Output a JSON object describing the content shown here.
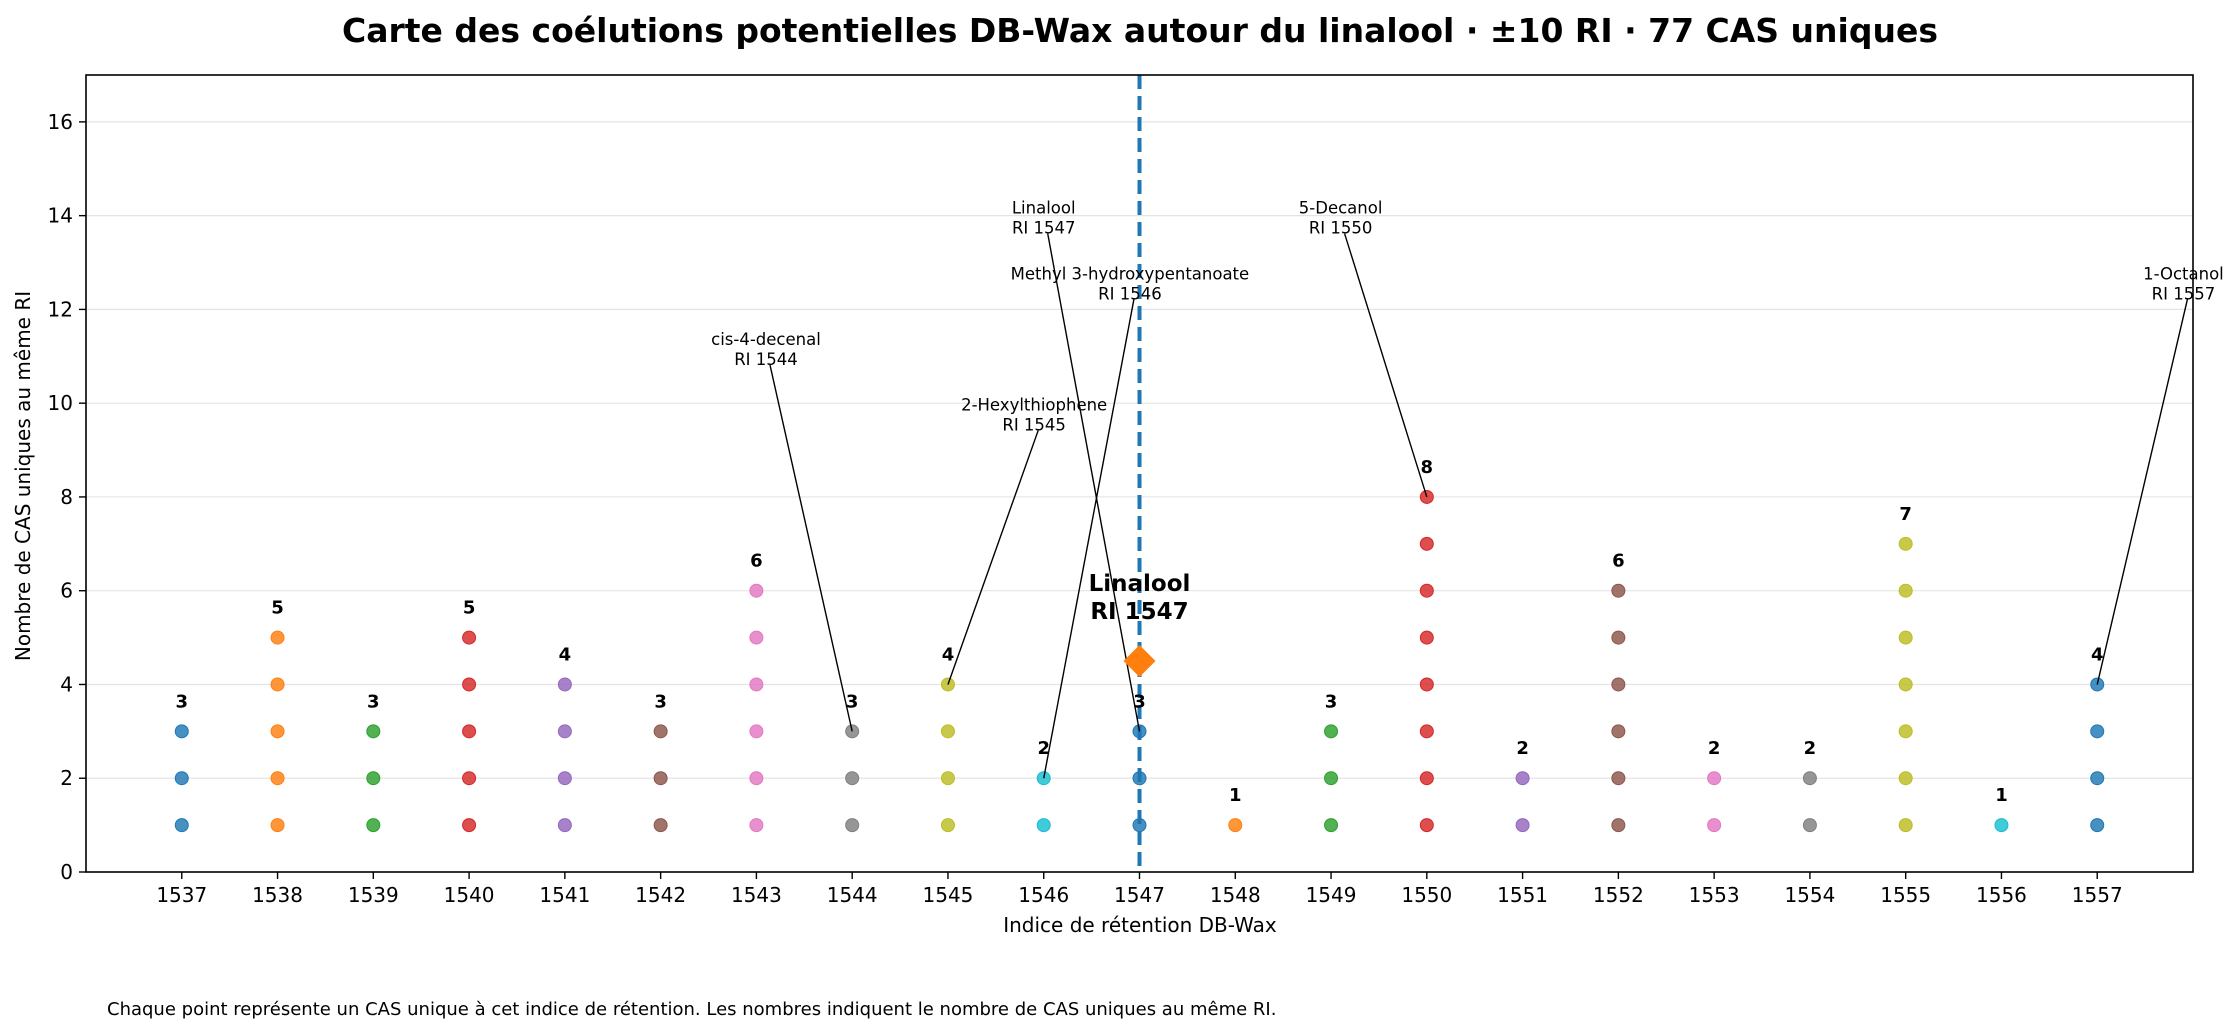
{
  "chart_data": {
    "type": "scatter",
    "title": "Carte des coélutions potentielles DB-Wax autour du linalool · ±10 RI · 77 CAS uniques",
    "xlabel": "Indice de rétention DB-Wax",
    "ylabel": "Nombre de CAS uniques au même RI",
    "xlim": [
      1536,
      1558
    ],
    "ylim": [
      0,
      17
    ],
    "x_ticks": [
      1537,
      1538,
      1539,
      1540,
      1541,
      1542,
      1543,
      1544,
      1545,
      1546,
      1547,
      1548,
      1549,
      1550,
      1551,
      1552,
      1553,
      1554,
      1555,
      1556,
      1557
    ],
    "y_ticks": [
      0,
      2,
      4,
      6,
      8,
      10,
      12,
      14,
      16
    ],
    "grid": "horizontal",
    "legend": "none",
    "columns": [
      {
        "ri": 1537,
        "count": 3,
        "label": "3",
        "color": "#1f77b4"
      },
      {
        "ri": 1538,
        "count": 5,
        "label": "5",
        "color": "#ff7f0e"
      },
      {
        "ri": 1539,
        "count": 3,
        "label": "3",
        "color": "#2ca02c"
      },
      {
        "ri": 1540,
        "count": 5,
        "label": "5",
        "color": "#d62728"
      },
      {
        "ri": 1541,
        "count": 4,
        "label": "4",
        "color": "#9467bd"
      },
      {
        "ri": 1542,
        "count": 3,
        "label": "3",
        "color": "#8c564b"
      },
      {
        "ri": 1543,
        "count": 6,
        "label": "6",
        "color": "#e377c2"
      },
      {
        "ri": 1544,
        "count": 3,
        "label": "3",
        "color": "#7f7f7f"
      },
      {
        "ri": 1545,
        "count": 4,
        "label": "4",
        "color": "#bcbd22"
      },
      {
        "ri": 1546,
        "count": 2,
        "label": "2",
        "color": "#17becf"
      },
      {
        "ri": 1547,
        "count": 3,
        "label": "3",
        "color": "#1f77b4"
      },
      {
        "ri": 1548,
        "count": 1,
        "label": "1",
        "color": "#ff7f0e"
      },
      {
        "ri": 1549,
        "count": 3,
        "label": "3",
        "color": "#2ca02c"
      },
      {
        "ri": 1550,
        "count": 8,
        "label": "8",
        "color": "#d62728"
      },
      {
        "ri": 1551,
        "count": 2,
        "label": "2",
        "color": "#9467bd"
      },
      {
        "ri": 1552,
        "count": 6,
        "label": "6",
        "color": "#8c564b"
      },
      {
        "ri": 1553,
        "count": 2,
        "label": "2",
        "color": "#e377c2"
      },
      {
        "ri": 1554,
        "count": 2,
        "label": "2",
        "color": "#7f7f7f"
      },
      {
        "ri": 1555,
        "count": 7,
        "label": "7",
        "color": "#bcbd22"
      },
      {
        "ri": 1556,
        "count": 1,
        "label": "1",
        "color": "#17becf"
      },
      {
        "ri": 1557,
        "count": 4,
        "label": "4",
        "color": "#1f77b4"
      }
    ],
    "annotations": [
      {
        "line1": "Linalool",
        "line2": "RI 1547",
        "target_x": 1547,
        "target_y": 3,
        "text_x": 1546.0,
        "text_y": 14.0
      },
      {
        "line1": "Methyl 3-hydroxypentanoate",
        "line2": "RI 1546",
        "target_x": 1546,
        "target_y": 2,
        "text_x": 1546.9,
        "text_y": 12.6
      },
      {
        "line1": "5-Decanol",
        "line2": "RI 1550",
        "target_x": 1550,
        "target_y": 8,
        "text_x": 1549.1,
        "text_y": 14.0
      },
      {
        "line1": "cis-4-decenal",
        "line2": "RI 1544",
        "target_x": 1544,
        "target_y": 3,
        "text_x": 1543.1,
        "text_y": 11.2
      },
      {
        "line1": "2-Hexylthiophene",
        "line2": "RI 1545",
        "target_x": 1545,
        "target_y": 4,
        "text_x": 1545.9,
        "text_y": 9.8
      },
      {
        "line1": "1-Octanol",
        "line2": "RI 1557",
        "target_x": 1557,
        "target_y": 4,
        "text_x": 1557.9,
        "text_y": 12.6
      }
    ],
    "reference": {
      "x": 1547,
      "y": 4.5,
      "line1": "Linalool",
      "line2": "RI 1547",
      "line_color": "#1f77b4",
      "marker_color": "#ff7f0e",
      "marker": "diamond"
    },
    "footnote": "Chaque point représente un CAS unique à cet indice de rétention. Les nombres indiquent le nombre de CAS uniques au même RI."
  }
}
